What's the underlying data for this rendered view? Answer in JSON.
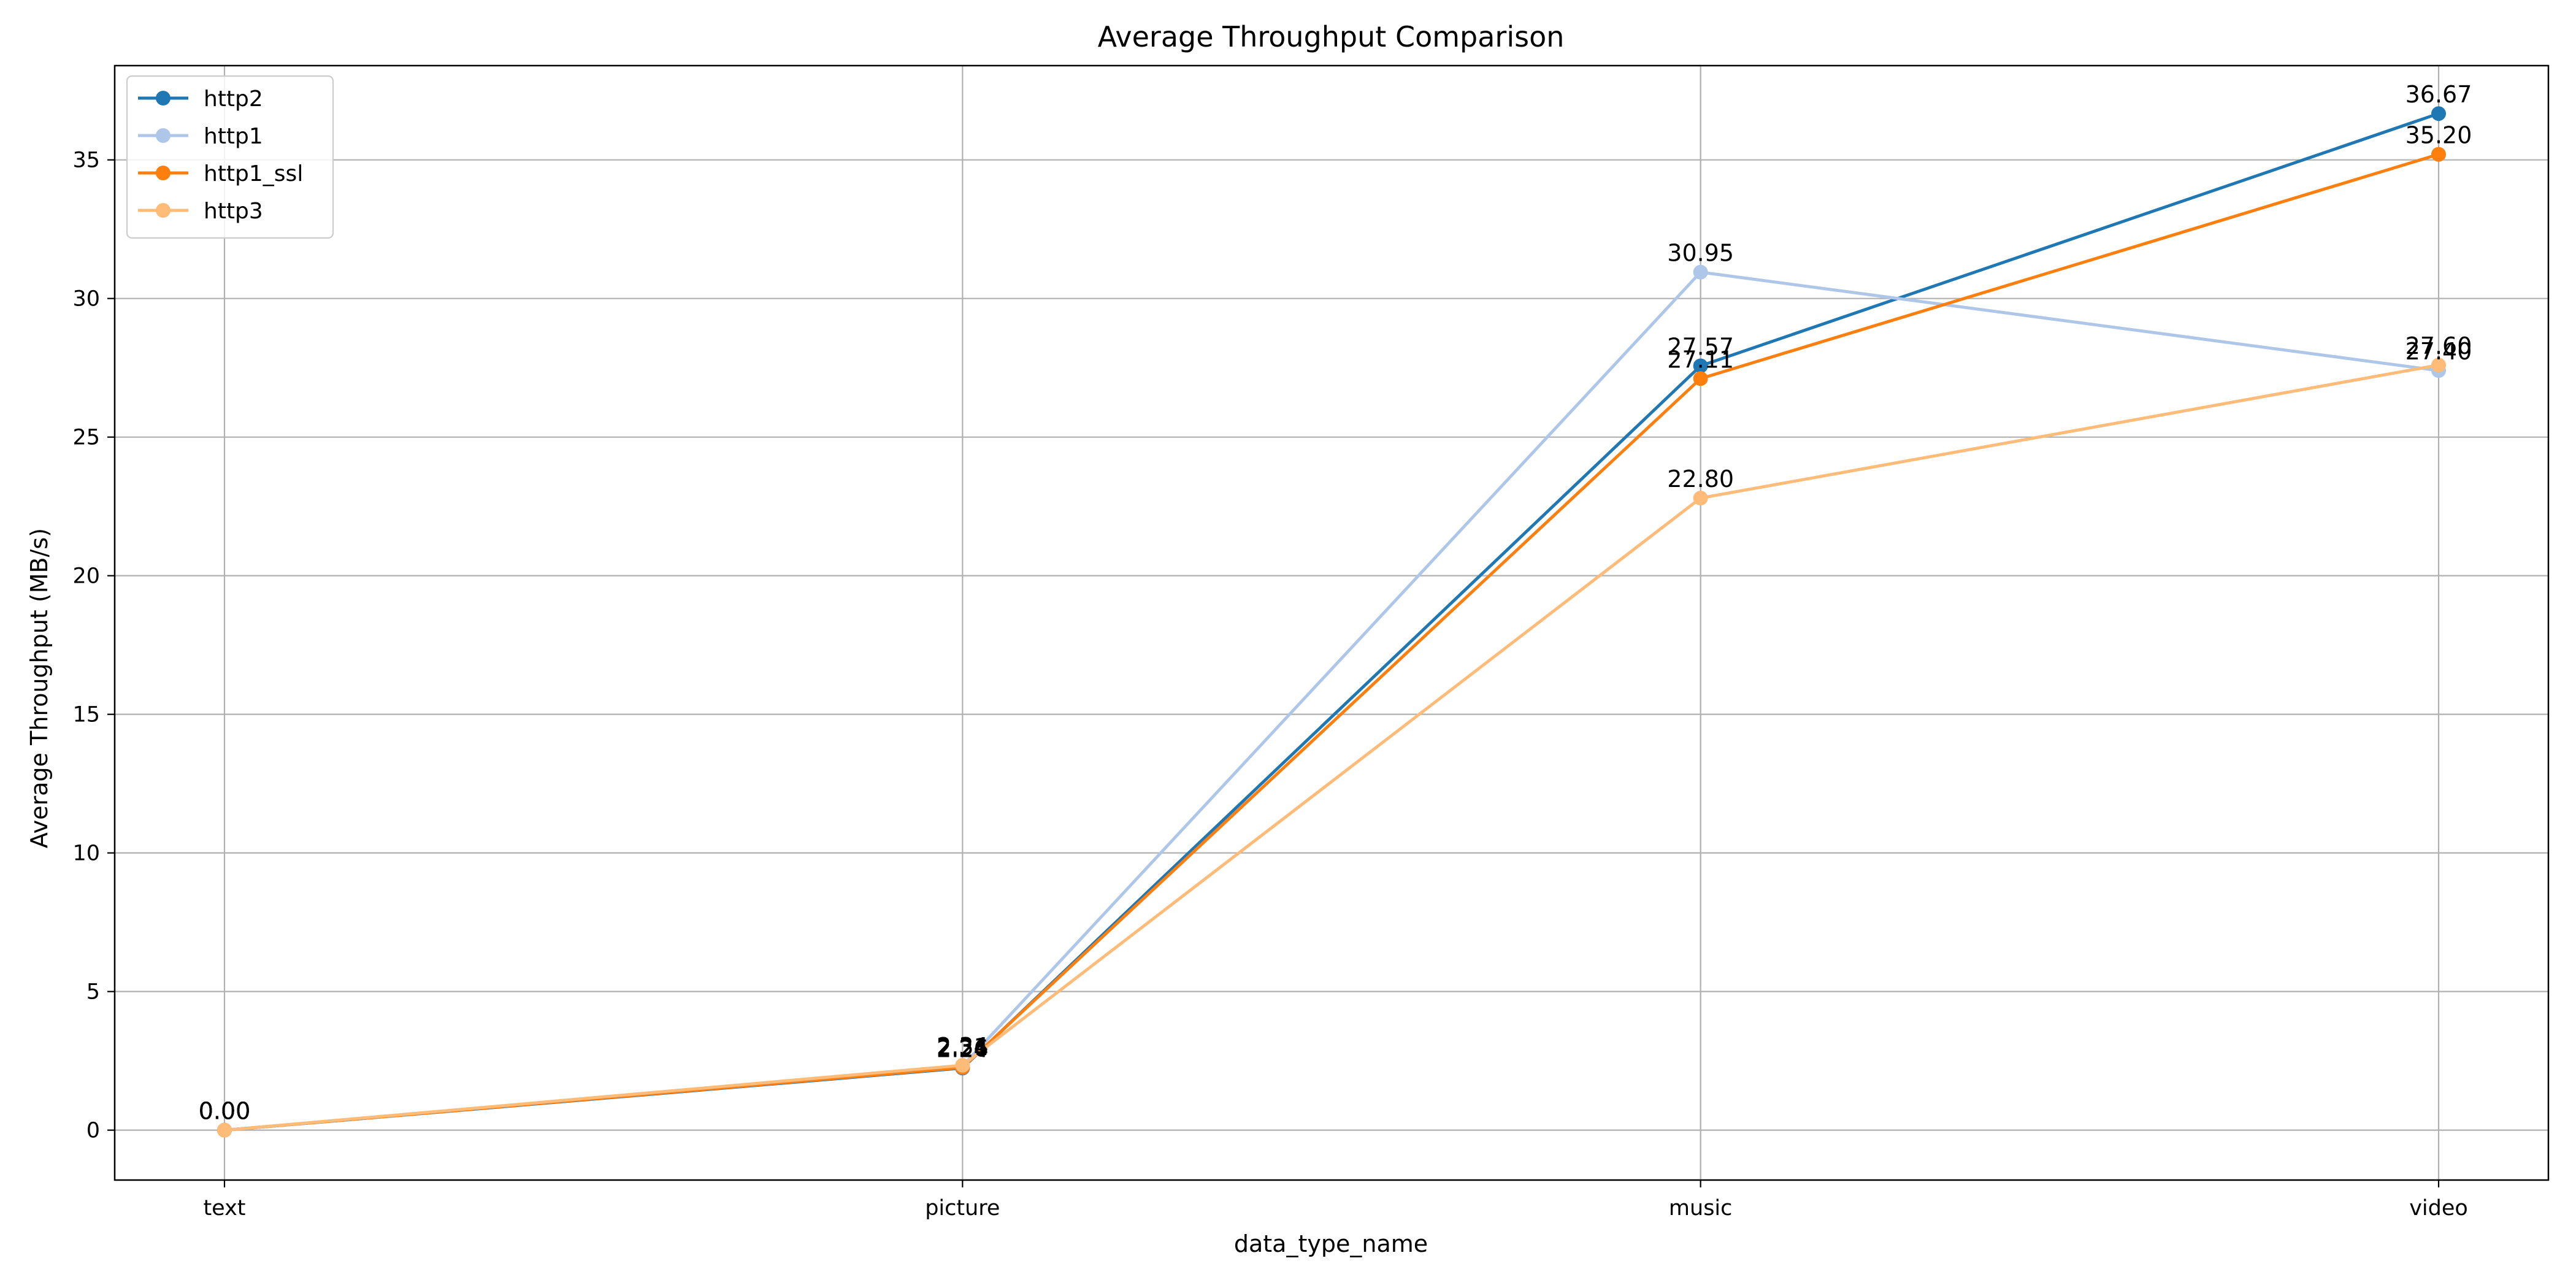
{
  "chart_data": {
    "type": "line",
    "title": "Average Throughput Comparison",
    "xlabel": "data_type_name",
    "ylabel": "Average Throughput (MB/s)",
    "categories": [
      "text",
      "picture",
      "music",
      "video"
    ],
    "ylim": [
      -1.8,
      38.4
    ],
    "yticks": [
      0,
      5,
      10,
      15,
      20,
      25,
      30,
      35
    ],
    "grid": true,
    "legend_position": "top-left",
    "markers": true,
    "data_labels": true,
    "label_format": "2 decimals",
    "series": [
      {
        "name": "http2",
        "color": "#1f77b4",
        "values": [
          0.0,
          2.24,
          27.57,
          36.67
        ],
        "labels": [
          "0.00",
          "2.24",
          "27.57",
          "36.67"
        ]
      },
      {
        "name": "http1",
        "color": "#aec7e8",
        "values": [
          0.0,
          2.31,
          30.95,
          27.4
        ],
        "labels": [
          "0.00",
          "2.31",
          "30.95",
          "27.40"
        ]
      },
      {
        "name": "http1_ssl",
        "color": "#ff7f0e",
        "values": [
          0.0,
          2.26,
          27.11,
          35.2
        ],
        "labels": [
          "0.00",
          "2.26",
          "27.11",
          "35.20"
        ]
      },
      {
        "name": "http3",
        "color": "#ffbb78",
        "values": [
          0.0,
          2.34,
          22.8,
          27.6
        ],
        "labels": [
          "0.00",
          "2.34",
          "22.80",
          "27.60"
        ]
      }
    ]
  }
}
